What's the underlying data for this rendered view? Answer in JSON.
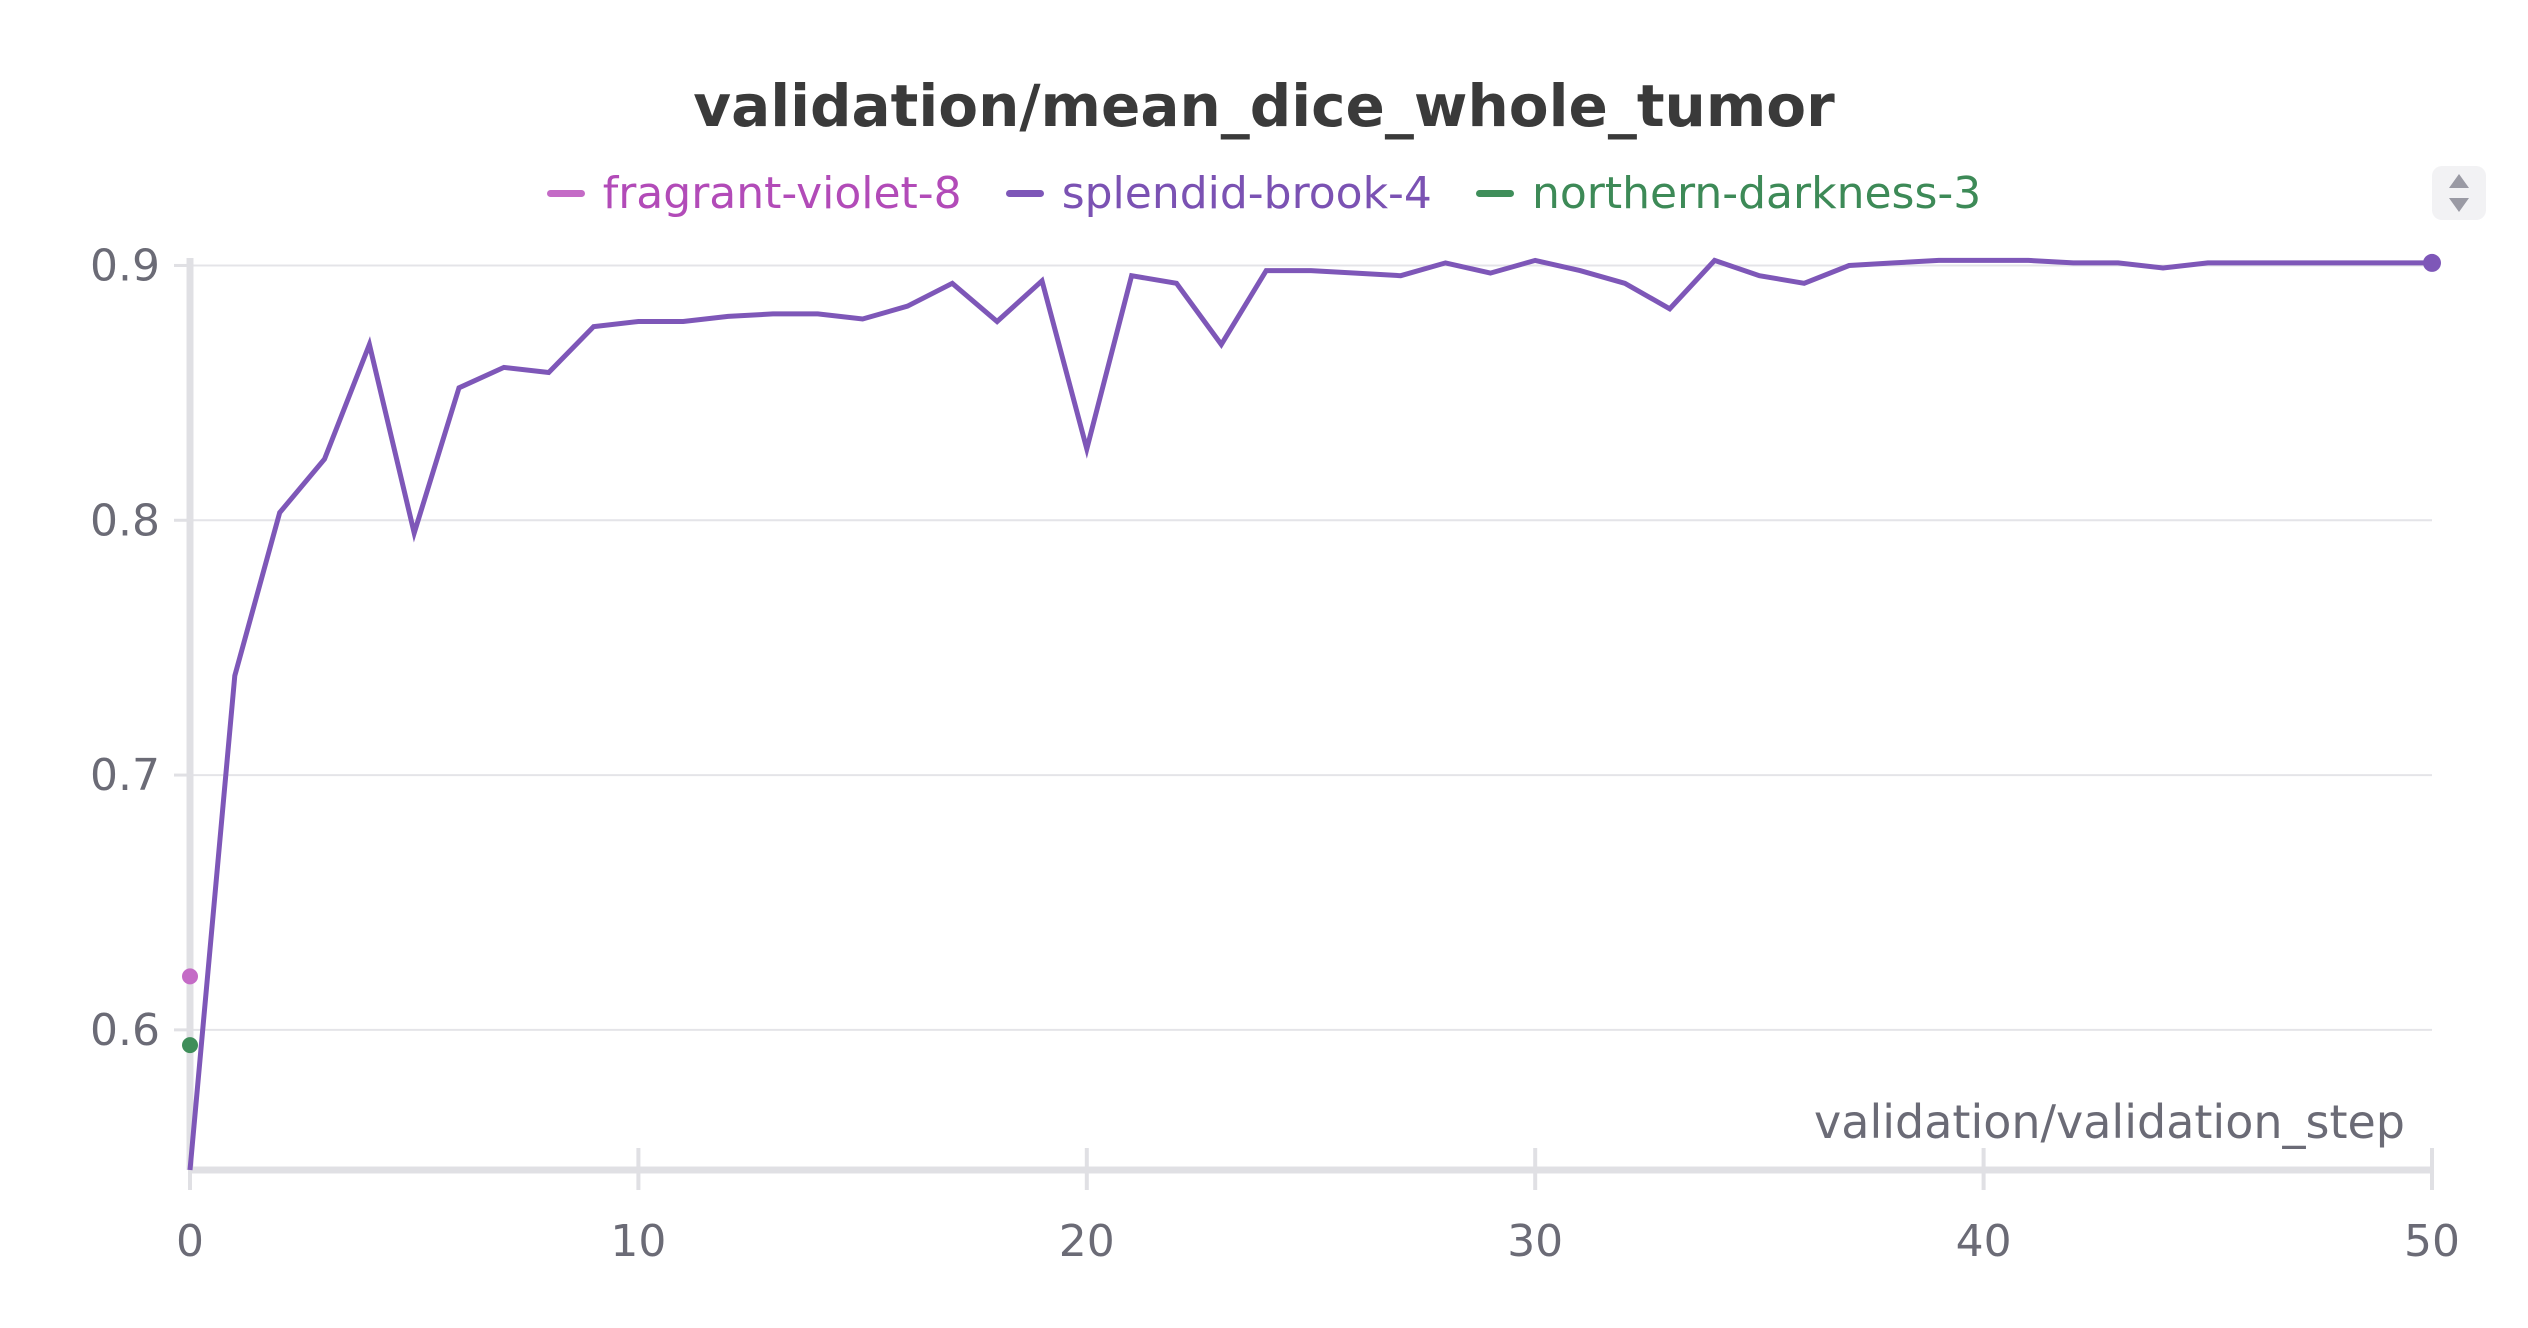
{
  "chart_data": {
    "type": "line",
    "title": "validation/mean_dice_whole_tumor",
    "xlabel": "validation/validation_step",
    "ylabel": "",
    "xlim": [
      0,
      50
    ],
    "ylim": [
      0.545,
      0.91
    ],
    "xticks": [
      0,
      10,
      20,
      30,
      40,
      50
    ],
    "yticks": [
      0.6,
      0.7,
      0.8,
      0.9
    ],
    "xtick_labels": [
      "0",
      "10",
      "20",
      "30",
      "40",
      "50"
    ],
    "ytick_labels": [
      "0.6",
      "0.7",
      "0.8",
      "0.9"
    ],
    "grid": "horizontal",
    "legend_position": "top-center",
    "series": [
      {
        "name": "fragrant-violet-8",
        "color": "#c46bc6",
        "x": [
          0
        ],
        "y": [
          0.621
        ]
      },
      {
        "name": "splendid-brook-4",
        "color": "#7e57b8",
        "x": [
          0,
          1,
          2,
          3,
          4,
          5,
          6,
          7,
          8,
          9,
          10,
          11,
          12,
          13,
          14,
          15,
          16,
          17,
          18,
          19,
          20,
          21,
          22,
          23,
          24,
          25,
          26,
          27,
          28,
          29,
          30,
          31,
          32,
          33,
          34,
          35,
          36,
          37,
          38,
          39,
          40,
          41,
          42,
          43,
          44,
          45,
          46,
          47,
          48,
          49,
          50
        ],
        "y": [
          0.545,
          0.739,
          0.803,
          0.824,
          0.869,
          0.795,
          0.852,
          0.86,
          0.858,
          0.876,
          0.878,
          0.878,
          0.88,
          0.881,
          0.881,
          0.879,
          0.884,
          0.893,
          0.878,
          0.894,
          0.828,
          0.896,
          0.893,
          0.869,
          0.898,
          0.898,
          0.897,
          0.896,
          0.901,
          0.897,
          0.902,
          0.898,
          0.893,
          0.883,
          0.902,
          0.896,
          0.893,
          0.9,
          0.901,
          0.902,
          0.902,
          0.902,
          0.901,
          0.901,
          0.899,
          0.901,
          0.901,
          0.901,
          0.901,
          0.901,
          0.901
        ]
      },
      {
        "name": "northern-darkness-3",
        "color": "#3f8e5a",
        "x": [
          0
        ],
        "y": [
          0.594
        ]
      }
    ]
  },
  "ui": {
    "scroll_icon": "up-down-arrows-icon"
  }
}
